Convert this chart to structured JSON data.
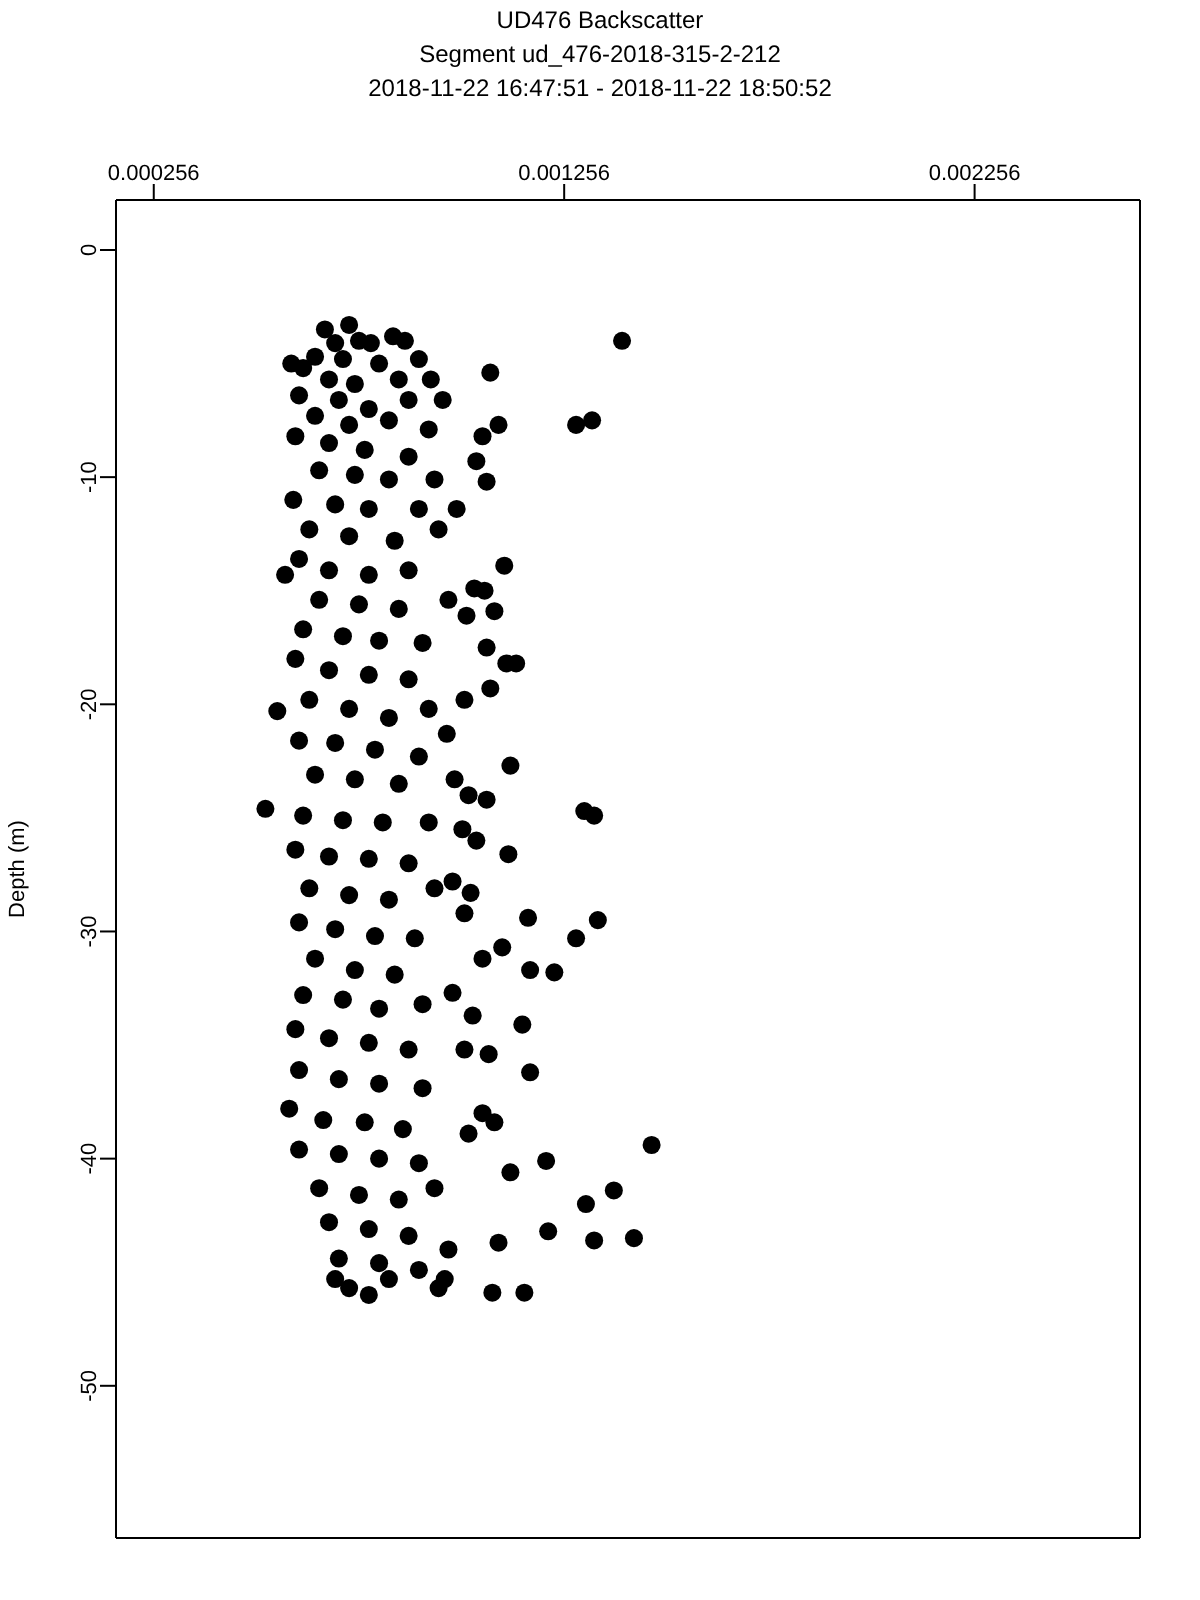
{
  "chart_data": {
    "type": "scatter",
    "title": "UD476 Backscatter",
    "subtitle": "Segment ud_476-2018-315-2-212",
    "annotations": [
      "2018-11-22 16:47:51 - 2018-11-22 18:50:52"
    ],
    "ylabel": "Depth (m)",
    "xlim": [
      0.000164,
      0.002659
    ],
    "xticks": [
      0.000256,
      0.001256,
      0.002256
    ],
    "ylim": [
      -56.7,
      2.2
    ],
    "yticks": [
      0,
      -10,
      -20,
      -30,
      -40,
      -50
    ],
    "marker": "circle",
    "series": [
      {
        "color": "#000000",
        "x": [
          0.001397,
          0.001285,
          0.001324,
          0.001096,
          0.001076,
          0.001057,
          0.001042,
          0.001067,
          0.000994,
          0.00111,
          0.001037,
          0.001062,
          0.001086,
          0.001018,
          0.001067,
          0.001115,
          0.001139,
          0.001076,
          0.001013,
          0.00097,
          0.001125,
          0.000989,
          0.001023,
          0.001067,
          0.001008,
          0.001042,
          0.00112,
          0.000984,
          0.001028,
          0.001013,
          0.001168,
          0.001338,
          0.001305,
          0.001329,
          0.001285,
          0.001105,
          0.001057,
          0.001173,
          0.001232,
          0.000984,
          0.001033,
          0.001154,
          0.001173,
          0.001072,
          0.001013,
          0.001057,
          0.001086,
          0.001023,
          0.001212,
          0.001469,
          0.001377,
          0.001309,
          0.001125,
          0.001217,
          0.001329,
          0.001426,
          0.001096,
          0.001159,
          0.001081,
          0.000965,
          0.000673,
          0.000732,
          0.000698,
          0.000756,
          0.000785,
          0.000839,
          0.000868,
          0.000649,
          0.000717,
          0.000805,
          0.000902,
          0.000591,
          0.00062,
          0.000683,
          0.000746,
          0.000853,
          0.000931,
          0.00061,
          0.000707,
          0.00078,
          0.000877,
          0.00096,
          0.000649,
          0.000732,
          0.000829,
          0.000926,
          0.000601,
          0.000683,
          0.00077,
          0.000877,
          0.000659,
          0.000746,
          0.000829,
          0.00094,
          0.000596,
          0.000698,
          0.00078,
          0.000902,
          0.000635,
          0.000732,
          0.000843,
          0.00095,
          0.00061,
          0.000683,
          0.00078,
          0.000877,
          0.000576,
          0.000659,
          0.000756,
          0.000853,
          0.000974,
          0.00062,
          0.000717,
          0.000805,
          0.000911,
          0.000601,
          0.000683,
          0.00078,
          0.000877,
          0.000635,
          0.000557,
          0.000732,
          0.000829,
          0.000926,
          0.00061,
          0.000698,
          0.000795,
          0.000902,
          0.000649,
          0.000746,
          0.000853,
          0.000528,
          0.00062,
          0.000717,
          0.000814,
          0.000926,
          0.000601,
          0.000683,
          0.00078,
          0.000877,
          0.000635,
          0.000732,
          0.000829,
          0.00094,
          0.00061,
          0.000698,
          0.000795,
          0.000892,
          0.000649,
          0.000746,
          0.000843,
          0.00062,
          0.000717,
          0.000805,
          0.000911,
          0.000601,
          0.000683,
          0.00078,
          0.000877,
          0.00061,
          0.000707,
          0.000805,
          0.000911,
          0.000586,
          0.000669,
          0.00077,
          0.000863,
          0.00061,
          0.000707,
          0.000805,
          0.000902,
          0.000659,
          0.000756,
          0.000853,
          0.00094,
          0.000683,
          0.00078,
          0.000877,
          0.000707,
          0.000805,
          0.000902,
          0.000732,
          0.000829,
          0.00078,
          0.000698,
          0.00095,
          0.000974
        ],
        "values": [
          -4.0,
          -7.7,
          -7.5,
          -7.7,
          -5.4,
          -8.2,
          -9.3,
          -10.2,
          -11.4,
          -13.9,
          -14.9,
          -15.0,
          -15.9,
          -16.1,
          -17.5,
          -18.2,
          -18.2,
          -19.3,
          -19.8,
          -21.3,
          -22.7,
          -23.3,
          -24.0,
          -24.2,
          -25.5,
          -26.0,
          -26.6,
          -27.8,
          -28.3,
          -29.2,
          -29.4,
          -29.5,
          -24.7,
          -24.9,
          -30.3,
          -30.7,
          -31.2,
          -31.7,
          -31.8,
          -32.7,
          -33.7,
          -34.1,
          -36.2,
          -35.4,
          -35.2,
          -38.0,
          -38.4,
          -38.9,
          -40.1,
          -39.4,
          -41.4,
          -42.0,
          -40.6,
          -43.2,
          -43.6,
          -43.5,
          -43.7,
          -45.9,
          -45.9,
          -45.3,
          -3.5,
          -3.3,
          -4.1,
          -4.0,
          -4.1,
          -3.8,
          -4.0,
          -4.7,
          -4.8,
          -5.0,
          -4.8,
          -5.0,
          -5.2,
          -5.7,
          -5.9,
          -5.7,
          -5.7,
          -6.4,
          -6.6,
          -7.0,
          -6.6,
          -6.6,
          -7.3,
          -7.7,
          -7.5,
          -7.9,
          -8.2,
          -8.5,
          -8.8,
          -9.1,
          -9.7,
          -9.9,
          -10.1,
          -10.1,
          -11.0,
          -11.2,
          -11.4,
          -11.4,
          -12.3,
          -12.6,
          -12.8,
          -12.3,
          -13.6,
          -14.1,
          -14.3,
          -14.1,
          -14.3,
          -15.4,
          -15.6,
          -15.8,
          -15.4,
          -16.7,
          -17.0,
          -17.2,
          -17.3,
          -18.0,
          -18.5,
          -18.7,
          -18.9,
          -19.8,
          -20.3,
          -20.2,
          -20.6,
          -20.2,
          -21.6,
          -21.7,
          -22.0,
          -22.3,
          -23.1,
          -23.3,
          -23.5,
          -24.6,
          -24.9,
          -25.1,
          -25.2,
          -25.2,
          -26.4,
          -26.7,
          -26.8,
          -27.0,
          -28.1,
          -28.4,
          -28.6,
          -28.1,
          -29.6,
          -29.9,
          -30.2,
          -30.3,
          -31.2,
          -31.7,
          -31.9,
          -32.8,
          -33.0,
          -33.4,
          -33.2,
          -34.3,
          -34.7,
          -34.9,
          -35.2,
          -36.1,
          -36.5,
          -36.7,
          -36.9,
          -37.8,
          -38.3,
          -38.4,
          -38.7,
          -39.6,
          -39.8,
          -40.0,
          -40.2,
          -41.3,
          -41.6,
          -41.8,
          -41.3,
          -42.8,
          -43.1,
          -43.4,
          -44.4,
          -44.6,
          -44.9,
          -45.7,
          -45.3,
          -46.0,
          -45.3,
          -45.7,
          -44.0
        ]
      }
    ]
  }
}
